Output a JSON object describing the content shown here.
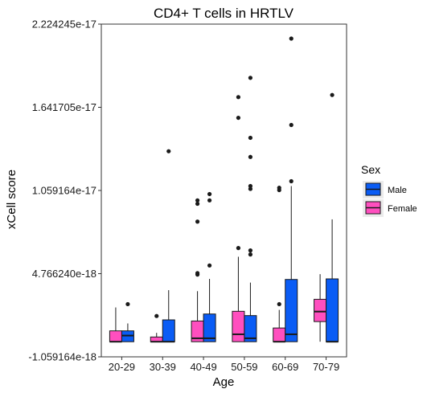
{
  "chart_data": {
    "type": "boxplot",
    "title": "CD4+ T cells in HRTLV",
    "xlabel": "Age",
    "ylabel": "xCell score",
    "categories": [
      "20-29",
      "30-39",
      "40-49",
      "50-59",
      "60-69",
      "70-79"
    ],
    "y_ticks": [
      -1.059164e-18,
      4.76624e-18,
      1.059164e-17,
      1.641705e-17,
      2.224245e-17
    ],
    "y_tick_labels": [
      "-1.059164e-18",
      "4.766240e-18",
      "1.059164e-17",
      "1.641705e-17",
      "2.224245e-17"
    ],
    "ylim": [
      -1.059164e-18,
      2.224245e-17
    ],
    "grid": false,
    "legend": {
      "title": "Sex",
      "position": "right",
      "entries": [
        {
          "name": "Male",
          "color": "#0a5cf5"
        },
        {
          "name": "Female",
          "color": "#ff4fbf"
        }
      ]
    },
    "series": [
      {
        "name": "Female",
        "color": "#ff4fbf",
        "boxes": [
          {
            "category": "20-29",
            "min": 0.0,
            "q1": 0.0,
            "median": 0.0,
            "q3": 7.6e-19,
            "max": 2.4e-18,
            "outliers": []
          },
          {
            "category": "30-39",
            "min": 0.0,
            "q1": 0.0,
            "median": 0.0,
            "q3": 3.3e-19,
            "max": 6.2e-19,
            "outliers": [
              1.8e-18
            ]
          },
          {
            "category": "40-49",
            "min": 0.0,
            "q1": 0.0,
            "median": 2.4e-19,
            "q3": 1.45e-18,
            "max": 3.54e-18,
            "outliers": [
              4.7e-18,
              4.8e-18,
              8.41e-18,
              9.66e-18,
              9.9e-18
            ]
          },
          {
            "category": "50-59",
            "min": 0.0,
            "q1": 0.0,
            "median": 5.2e-19,
            "q3": 2.13e-18,
            "max": 5.95e-18,
            "outliers": [
              6.56e-18,
              1.568e-17,
              1.713e-17
            ]
          },
          {
            "category": "60-69",
            "min": 0.0,
            "q1": 0.0,
            "median": 0.0,
            "q3": 9.6e-19,
            "max": 2.23e-18,
            "outliers": [
              2.63e-18,
              1.078e-17,
              1.062e-17
            ]
          },
          {
            "category": "70-79",
            "min": 0.0,
            "q1": 1.41e-18,
            "median": 2.11e-18,
            "q3": 2.97e-18,
            "max": 4.73e-18,
            "outliers": []
          }
        ]
      },
      {
        "name": "Male",
        "color": "#0a5cf5",
        "boxes": [
          {
            "category": "20-29",
            "min": 0.0,
            "q1": 0.0,
            "median": 4.3e-19,
            "q3": 7.6e-19,
            "max": 1.28e-18,
            "outliers": [
              2.63e-18
            ]
          },
          {
            "category": "30-39",
            "min": 0.0,
            "q1": 0.0,
            "median": 0.0,
            "q3": 1.53e-18,
            "max": 3.61e-18,
            "outliers": [
              1.334e-17
            ]
          },
          {
            "category": "40-49",
            "min": 0.0,
            "q1": 0.0,
            "median": 2.4e-19,
            "q3": 1.94e-18,
            "max": 4.4e-18,
            "outliers": [
              5.34e-18,
              9.9e-18,
              1.034e-17
            ]
          },
          {
            "category": "50-59",
            "min": 0.0,
            "q1": 0.0,
            "median": 2.4e-19,
            "q3": 1.83e-18,
            "max": 4.14e-18,
            "outliers": [
              6.11e-18,
              6.39e-18,
              1.07e-17,
              1.09e-17,
              1.294e-17,
              1.428e-17,
              1.848e-17
            ]
          },
          {
            "category": "60-69",
            "min": 0.0,
            "q1": 0.0,
            "median": 5.2e-19,
            "q3": 4.36e-18,
            "max": 1.09e-17,
            "outliers": [
              1.124e-17,
              1.518e-17,
              2.123e-17
            ]
          },
          {
            "category": "70-79",
            "min": 0.0,
            "q1": 0.0,
            "median": 0.0,
            "q3": 4.4e-18,
            "max": 8.57e-18,
            "outliers": [
              1.728e-17
            ]
          }
        ]
      }
    ]
  }
}
